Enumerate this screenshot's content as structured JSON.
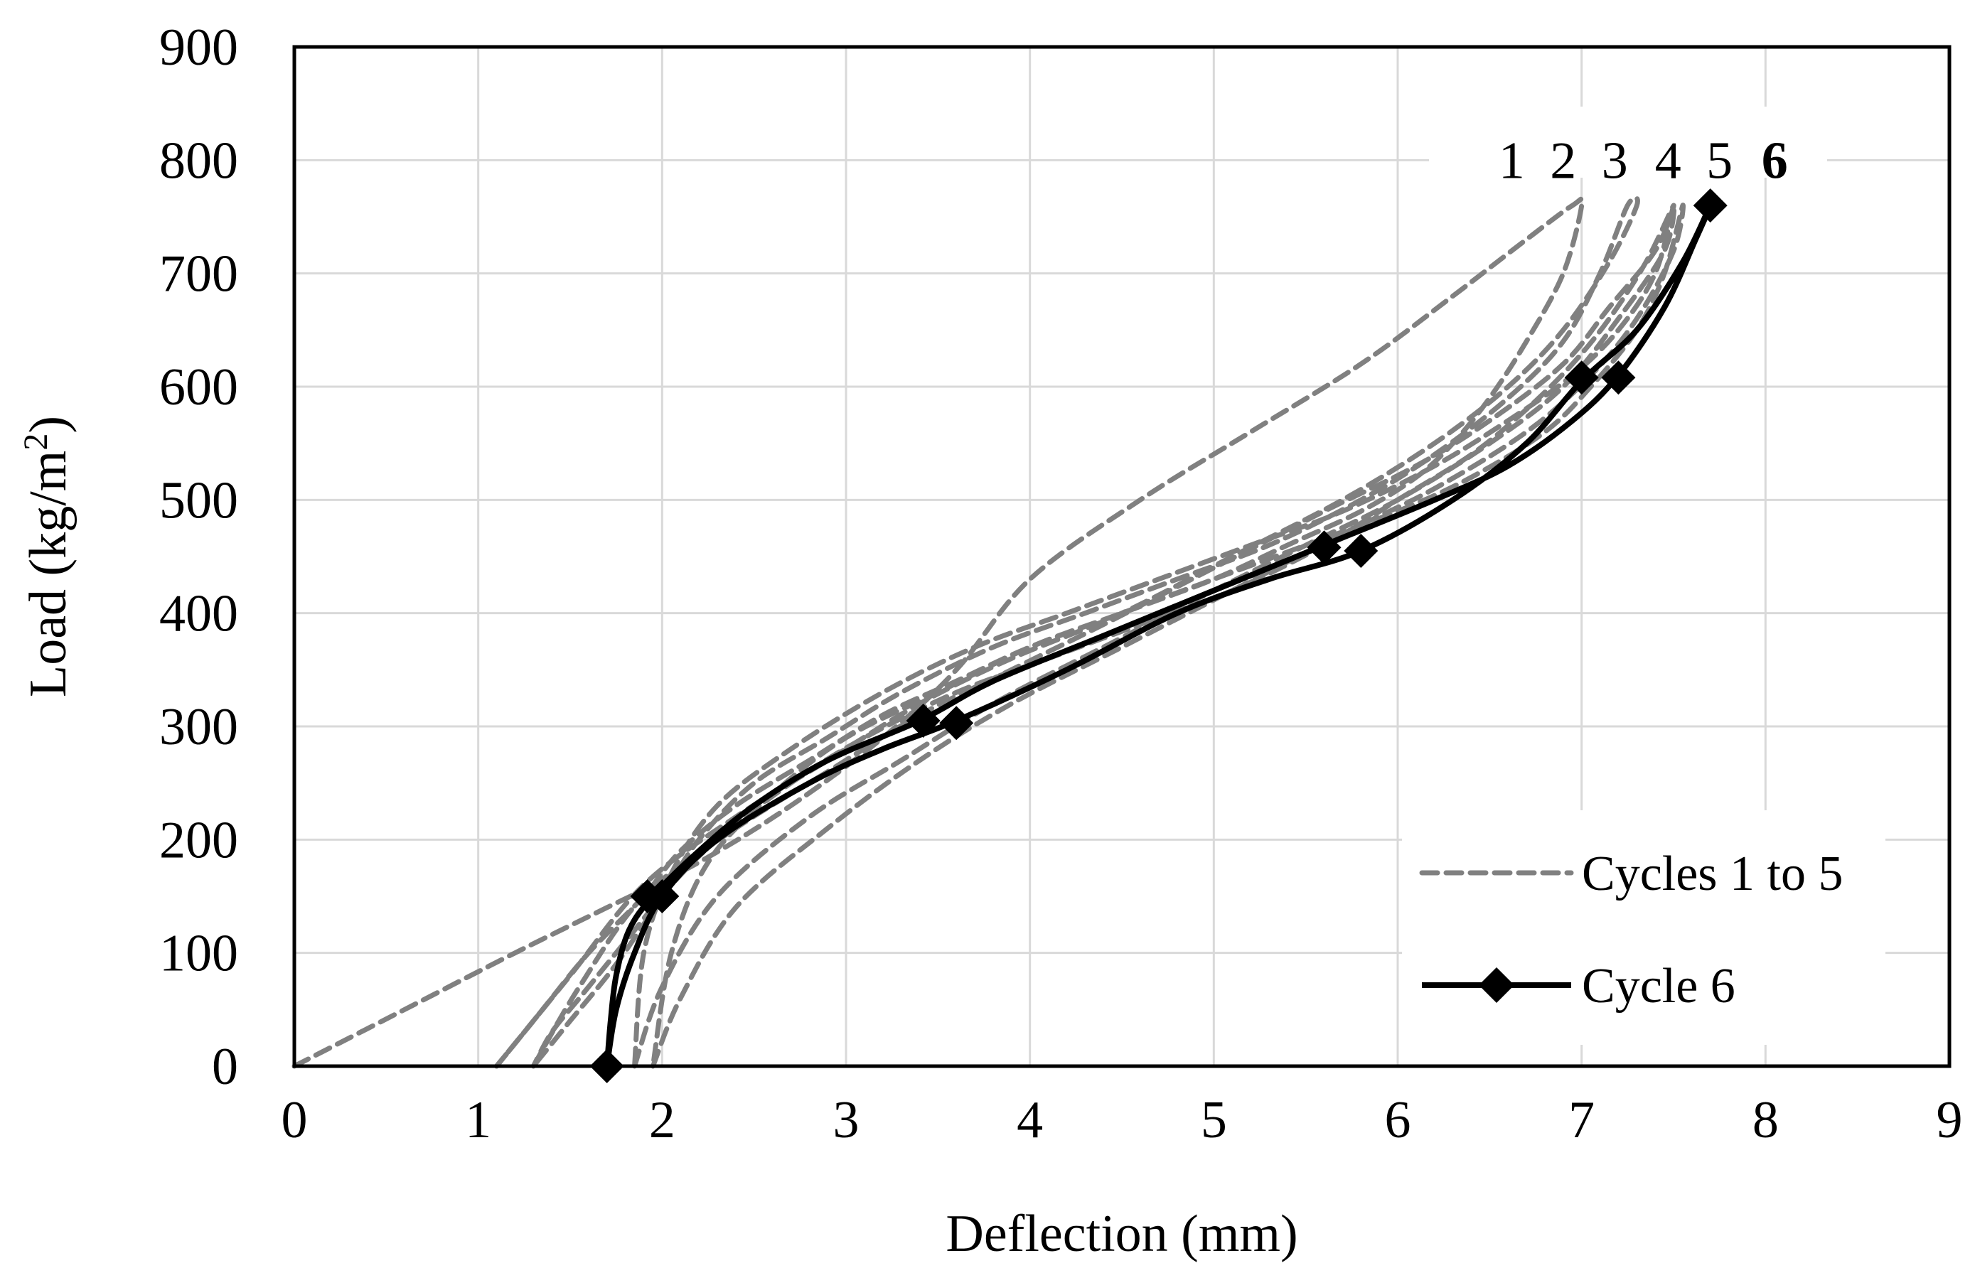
{
  "chart_data": {
    "type": "line",
    "title": "",
    "xlabel": "Deflection (mm)",
    "ylabel_parts": [
      "Load (kg/m",
      "2",
      ")"
    ],
    "xlim": [
      0,
      9
    ],
    "ylim": [
      0,
      900
    ],
    "xticks": [
      0,
      1,
      2,
      3,
      4,
      5,
      6,
      7,
      8,
      9
    ],
    "yticks": [
      0,
      100,
      200,
      300,
      400,
      500,
      600,
      700,
      800,
      900
    ],
    "grid": true,
    "legend_position": "bottom-right",
    "legend": [
      {
        "label": "Cycles 1 to 5",
        "style": "dashed"
      },
      {
        "label": "Cycle 6",
        "style": "solid-marker"
      }
    ],
    "annotations": [
      {
        "text": "1",
        "x": 6.62,
        "y": 800,
        "bold": false
      },
      {
        "text": "2",
        "x": 6.9,
        "y": 800,
        "bold": false
      },
      {
        "text": "3",
        "x": 7.18,
        "y": 800,
        "bold": false
      },
      {
        "text": "4",
        "x": 7.47,
        "y": 800,
        "bold": false
      },
      {
        "text": "5",
        "x": 7.75,
        "y": 800,
        "bold": false
      },
      {
        "text": "6",
        "x": 8.05,
        "y": 800,
        "bold": true
      }
    ],
    "series": [
      {
        "name": "Cycle 1",
        "style": "dashed",
        "color": "#808080",
        "x": [
          0,
          0.6,
          1.2,
          1.7,
          2.2,
          2.7,
          3.2,
          3.6,
          4.0,
          4.6,
          5.2,
          5.8,
          6.3,
          6.7,
          6.95,
          7.0,
          6.9,
          6.7,
          6.5,
          6.3,
          6.1,
          5.8,
          5.4,
          5.0,
          4.5,
          4.0,
          3.6,
          3.2,
          2.8,
          2.4,
          2.1,
          1.9,
          1.6,
          1.35,
          1.2,
          1.1
        ],
        "y": [
          0,
          50,
          100,
          140,
          180,
          230,
          290,
          350,
          430,
          500,
          560,
          620,
          680,
          730,
          760,
          760,
          700,
          640,
          590,
          550,
          520,
          490,
          460,
          430,
          400,
          370,
          340,
          310,
          270,
          230,
          190,
          150,
          100,
          50,
          20,
          0
        ]
      },
      {
        "name": "Cycle 2",
        "style": "dashed",
        "color": "#808080",
        "x": [
          1.1,
          1.5,
          1.9,
          2.4,
          2.9,
          3.4,
          3.9,
          4.5,
          5.1,
          5.7,
          6.2,
          6.6,
          6.9,
          7.15,
          7.3,
          7.25,
          7.1,
          6.9,
          6.6,
          6.2,
          5.8,
          5.3,
          4.8,
          4.3,
          3.8,
          3.3,
          2.9,
          2.5,
          2.2,
          2.0,
          1.75,
          1.5,
          1.3
        ],
        "y": [
          0,
          80,
          160,
          220,
          270,
          320,
          360,
          400,
          450,
          500,
          550,
          600,
          650,
          710,
          760,
          760,
          700,
          640,
          590,
          540,
          500,
          460,
          430,
          400,
          370,
          330,
          290,
          250,
          200,
          150,
          90,
          40,
          0
        ]
      },
      {
        "name": "Cycle 3",
        "style": "dashed",
        "color": "#808080",
        "x": [
          1.3,
          1.55,
          1.9,
          2.4,
          2.9,
          3.4,
          3.9,
          4.4,
          5.0,
          5.6,
          6.1,
          6.5,
          6.9,
          7.15,
          7.4,
          7.5,
          7.35,
          7.15,
          6.95,
          6.7,
          6.4,
          6.0,
          5.6,
          5.1,
          4.6,
          4.1,
          3.6,
          3.1,
          2.7,
          2.3,
          2.05,
          1.85,
          1.7,
          1.55,
          1.4,
          1.3
        ],
        "y": [
          0,
          70,
          150,
          210,
          260,
          310,
          350,
          390,
          440,
          490,
          530,
          570,
          620,
          670,
          720,
          760,
          710,
          660,
          620,
          580,
          540,
          500,
          460,
          420,
          390,
          360,
          330,
          290,
          250,
          200,
          160,
          120,
          90,
          60,
          30,
          0
        ]
      },
      {
        "name": "Cycle 4",
        "style": "dashed",
        "color": "#808080",
        "x": [
          1.85,
          2.0,
          2.3,
          2.8,
          3.3,
          3.8,
          4.4,
          5.0,
          5.5,
          6.0,
          6.5,
          6.9,
          7.2,
          7.45,
          7.5,
          7.4,
          7.2,
          6.95,
          6.6,
          6.2,
          5.7,
          5.2,
          4.7,
          4.2,
          3.7,
          3.2,
          2.7,
          2.3,
          2.05,
          1.9,
          1.85
        ],
        "y": [
          0,
          70,
          150,
          220,
          270,
          320,
          370,
          420,
          460,
          500,
          550,
          600,
          660,
          720,
          760,
          700,
          650,
          610,
          570,
          530,
          490,
          460,
          430,
          400,
          370,
          330,
          280,
          230,
          170,
          100,
          0
        ]
      },
      {
        "name": "Cycle 5",
        "style": "dashed",
        "color": "#808080",
        "x": [
          1.95,
          2.1,
          2.4,
          2.9,
          3.4,
          3.9,
          4.5,
          5.1,
          5.7,
          6.2,
          6.7,
          7.05,
          7.3,
          7.5,
          7.55,
          7.45,
          7.3,
          7.05,
          6.8,
          6.4,
          6.0,
          5.5,
          5.0,
          4.5,
          4.0,
          3.5,
          3.0,
          2.6,
          2.25,
          2.05,
          1.95
        ],
        "y": [
          0,
          60,
          140,
          210,
          270,
          320,
          370,
          420,
          470,
          510,
          560,
          610,
          660,
          720,
          760,
          700,
          650,
          600,
          560,
          520,
          490,
          460,
          430,
          400,
          370,
          330,
          290,
          240,
          180,
          100,
          0
        ]
      },
      {
        "name": "Cycle 6",
        "style": "solid",
        "color": "#000000",
        "x": [
          1.7,
          1.75,
          1.85,
          2.0,
          2.3,
          2.8,
          3.2,
          3.6,
          4.2,
          4.8,
          5.3,
          5.8,
          6.3,
          6.7,
          7.0,
          7.3,
          7.55,
          7.7,
          7.62,
          7.45,
          7.2,
          6.95,
          6.6,
          6.2,
          5.6,
          5.0,
          4.4,
          3.8,
          3.4,
          2.9,
          2.5,
          2.2,
          1.95,
          1.82,
          1.75,
          1.72,
          1.7
        ],
        "y": [
          0,
          50,
          100,
          150,
          200,
          250,
          280,
          305,
          350,
          400,
          430,
          455,
          500,
          550,
          605,
          650,
          710,
          760,
          730,
          670,
          610,
          570,
          530,
          500,
          460,
          420,
          380,
          340,
          305,
          270,
          230,
          190,
          150,
          120,
          80,
          40,
          0
        ]
      }
    ],
    "markers": [
      {
        "x": 1.7,
        "y": 0
      },
      {
        "x": 1.92,
        "y": 150
      },
      {
        "x": 2.0,
        "y": 150
      },
      {
        "x": 3.42,
        "y": 305
      },
      {
        "x": 3.6,
        "y": 303
      },
      {
        "x": 5.6,
        "y": 458
      },
      {
        "x": 5.8,
        "y": 455
      },
      {
        "x": 7.0,
        "y": 608
      },
      {
        "x": 7.2,
        "y": 608
      },
      {
        "x": 7.7,
        "y": 760
      }
    ]
  }
}
